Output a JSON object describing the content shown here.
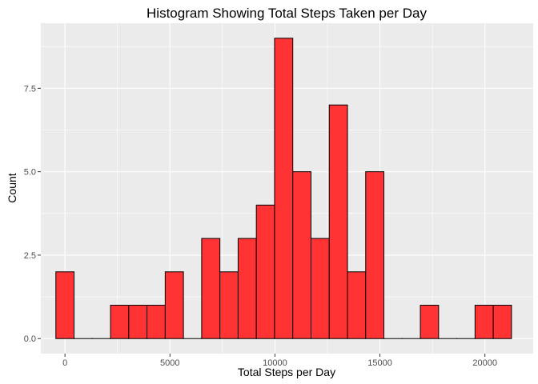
{
  "chart_data": {
    "type": "bar",
    "title": "Histogram Showing Total Steps Taken per Day",
    "xlabel": "Total Steps per Day",
    "ylabel": "Count",
    "bins": {
      "start": -434,
      "width": 868,
      "counts": [
        2,
        0,
        0,
        1,
        1,
        1,
        2,
        0,
        3,
        2,
        3,
        4,
        9,
        5,
        3,
        7,
        2,
        5,
        0,
        0,
        1,
        0,
        0,
        1,
        1
      ]
    },
    "xlim": [
      -1150,
      22300
    ],
    "ylim": [
      -0.45,
      9.45
    ],
    "x_ticks": [
      0,
      5000,
      10000,
      15000,
      20000
    ],
    "x_tick_labels": [
      "0",
      "5000",
      "10000",
      "15000",
      "20000"
    ],
    "y_ticks": [
      0,
      2.5,
      5,
      7.5
    ],
    "y_tick_labels": [
      "0.0",
      "2.5",
      "5.0",
      "7.5"
    ],
    "grid": true,
    "colors": {
      "panel_background": "#ebebeb",
      "grid_major": "#ffffff",
      "bar_fill": "#ff3333",
      "bar_outline": "#000000"
    }
  }
}
